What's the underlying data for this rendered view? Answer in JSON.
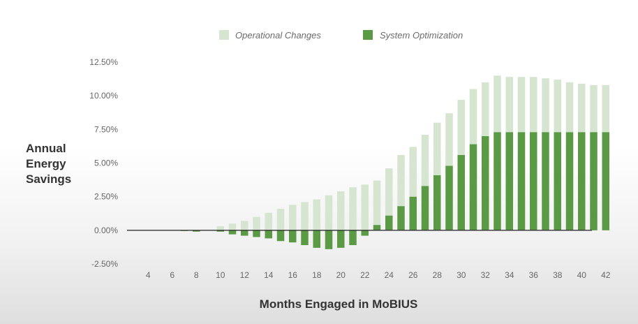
{
  "chart_data": {
    "type": "bar",
    "stacked": true,
    "title": "",
    "xlabel": "Months Engaged in MoBIUS",
    "ylabel_lines": [
      "Annual",
      "Energy",
      "Savings"
    ],
    "ylim": [
      -2.5,
      12.5
    ],
    "y_ticks": [
      "12.50%",
      "10.00%",
      "7.50%",
      "5.00%",
      "2.50%",
      "0.00%",
      "-2.50%"
    ],
    "y_tick_values": [
      12.5,
      10,
      7.5,
      5,
      2.5,
      0,
      -2.5
    ],
    "x_tick_labels": [
      "4",
      "6",
      "8",
      "10",
      "12",
      "14",
      "16",
      "18",
      "20",
      "22",
      "24",
      "26",
      "28",
      "30",
      "32",
      "34",
      "36",
      "38",
      "40",
      "42"
    ],
    "categories": [
      3,
      4,
      5,
      6,
      7,
      8,
      9,
      10,
      11,
      12,
      13,
      14,
      15,
      16,
      17,
      18,
      19,
      20,
      21,
      22,
      23,
      24,
      25,
      26,
      27,
      28,
      29,
      30,
      31,
      32,
      33,
      34,
      35,
      36,
      37,
      38,
      39,
      40,
      41,
      42
    ],
    "series": [
      {
        "name": "Operational Changes",
        "color": "#d5e5cf",
        "values": [
          0,
          0,
          0,
          0,
          0,
          0,
          0,
          0.3,
          0.5,
          0.7,
          1.0,
          1.3,
          1.6,
          1.9,
          2.1,
          2.3,
          2.6,
          2.9,
          3.2,
          3.4,
          3.3,
          3.5,
          3.8,
          3.7,
          3.8,
          3.9,
          3.9,
          4.1,
          4.1,
          4.0,
          4.2,
          4.1,
          4.1,
          4.1,
          4.0,
          3.9,
          3.7,
          3.6,
          3.5,
          3.5
        ]
      },
      {
        "name": "System Optimization",
        "color": "#5a9a44",
        "values": [
          0,
          0,
          0,
          0,
          -0.05,
          -0.1,
          0,
          -0.1,
          -0.3,
          -0.4,
          -0.5,
          -0.6,
          -0.8,
          -0.9,
          -1.1,
          -1.3,
          -1.4,
          -1.3,
          -1.1,
          -0.4,
          0.4,
          1.1,
          1.8,
          2.5,
          3.3,
          4.1,
          4.8,
          5.6,
          6.4,
          7.0,
          7.3,
          7.3,
          7.3,
          7.3,
          7.3,
          7.3,
          7.3,
          7.3,
          7.3,
          7.3
        ]
      }
    ],
    "legend_position": "top-center"
  }
}
